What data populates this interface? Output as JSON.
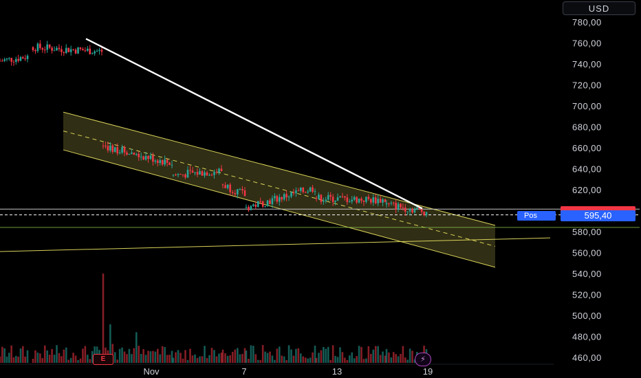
{
  "currency": "USD",
  "position_label": "Pos",
  "last_price": "595,40",
  "earnings_badge": "E",
  "colors": {
    "up": "#26a69a",
    "down": "#f23645",
    "channel": "#d9d25a",
    "accent": "#2962ff",
    "trendline": "#ffffff"
  },
  "chart_data": {
    "type": "candlestick",
    "y_axis": {
      "range": [
        452,
        798
      ],
      "ticks": [
        460,
        480,
        500,
        520,
        540,
        560,
        580,
        600,
        620,
        640,
        660,
        680,
        700,
        720,
        740,
        760,
        780
      ],
      "tick_labels": [
        "460,00",
        "480,00",
        "500,00",
        "520,00",
        "540,00",
        "560,00",
        "580,00",
        "600,00",
        "620,00",
        "640,00",
        "660,00",
        "680,00",
        "700,00",
        "720,00",
        "740,00",
        "760,00",
        "780,00"
      ]
    },
    "x_axis": {
      "range": [
        0,
        800
      ],
      "ticks": [
        {
          "x": 220,
          "label": "Nov"
        },
        {
          "x": 355,
          "label": "7"
        },
        {
          "x": 490,
          "label": "13"
        },
        {
          "x": 622,
          "label": "19"
        }
      ]
    },
    "price_lines": [
      601.5,
      596,
      584
    ],
    "segments": [
      {
        "x0": 0,
        "y0": 743,
        "x1": 40,
        "y1": 747,
        "n": 13
      },
      {
        "x0": 48,
        "y0": 756,
        "x1": 148,
        "y1": 752,
        "n": 30
      },
      {
        "x0": 150,
        "y0": 662,
        "x1": 250,
        "y1": 645,
        "n": 30
      },
      {
        "x0": 252,
        "y0": 634,
        "x1": 322,
        "y1": 638,
        "n": 21
      },
      {
        "x0": 324,
        "y0": 625,
        "x1": 356,
        "y1": 615,
        "n": 10
      },
      {
        "x0": 358,
        "y0": 603,
        "x1": 458,
        "y1": 622,
        "n": 30
      },
      {
        "x0": 460,
        "y0": 612,
        "x1": 560,
        "y1": 610,
        "n": 30
      },
      {
        "x0": 562,
        "y0": 606,
        "x1": 620,
        "y1": 599,
        "n": 18
      }
    ],
    "trendline": [
      {
        "x": 125,
        "y": 764
      },
      {
        "x": 614,
        "y": 602
      }
    ],
    "channel": {
      "x0": 92,
      "x1": 720,
      "upper": [
        694,
        586
      ],
      "middle": [
        676,
        566
      ],
      "lower": [
        658,
        546
      ]
    },
    "support_line": [
      {
        "x": 0,
        "y": 561
      },
      {
        "x": 800,
        "y": 574
      }
    ],
    "volume_spike_x": 150
  }
}
